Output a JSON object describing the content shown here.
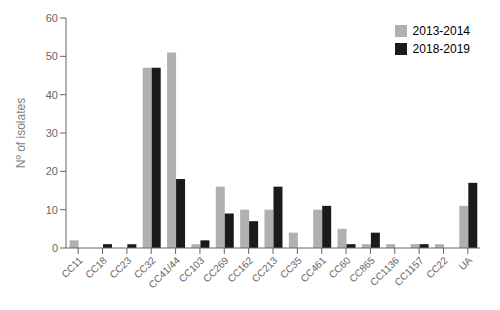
{
  "chart_data": {
    "type": "bar",
    "categories": [
      "CC11",
      "CC18",
      "CC23",
      "CC32",
      "CC41/44",
      "CC103",
      "CC269",
      "CC162",
      "CC213",
      "CC35",
      "CC461",
      "CC60",
      "CC865",
      "CC1136",
      "CC1157",
      "CC22",
      "UA"
    ],
    "series": [
      {
        "name": "2013-2014",
        "color": "#b0b0b0",
        "values": [
          2,
          0,
          0,
          47,
          51,
          1,
          16,
          10,
          10,
          4,
          10,
          5,
          1,
          1,
          1,
          1,
          11
        ]
      },
      {
        "name": "2018-2019",
        "color": "#1a1a1a",
        "values": [
          0,
          1,
          1,
          47,
          18,
          2,
          9,
          7,
          16,
          0,
          11,
          1,
          4,
          0,
          1,
          0,
          17
        ]
      }
    ],
    "ylabel": "Nº of isolates",
    "ylim": [
      0,
      60
    ],
    "yticks": [
      0,
      10,
      20,
      30,
      40,
      50,
      60
    ],
    "grid": false,
    "legend": "upper right"
  }
}
